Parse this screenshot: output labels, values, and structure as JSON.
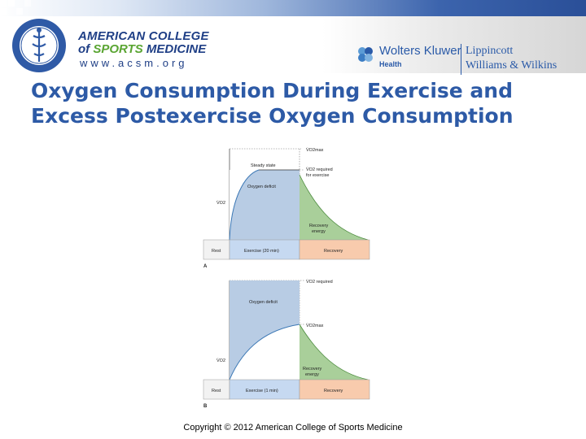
{
  "header": {
    "org_line1": "AMERICAN COLLEGE",
    "org_line2_prefix": "of ",
    "org_line2_highlight": "SPORTS",
    "org_line2_suffix": " MEDICINE",
    "org_url": "www.acsm.org",
    "publisher_name": "Wolters Kluwer",
    "publisher_division": "Health",
    "imprint_line1": "Lippincott",
    "imprint_line2": "Williams & Wilkins"
  },
  "slide": {
    "title": "Oxygen Consumption During Exercise and Excess Postexercise Oxygen Consumption",
    "copyright": "Copyright © 2012 American College of Sports Medicine"
  },
  "panel_a": {
    "letter": "A",
    "vo2max_label": "V̇O2max",
    "required_label": "V̇O2 required",
    "required_label2": "for exercise",
    "steady_state": "Steady state",
    "deficit": "Oxygen deficit",
    "y_label": "V̇O2",
    "recovery_energy1": "Recovery",
    "recovery_energy2": "energy",
    "phase_rest": "Rest",
    "phase_exercise": "Exercise (20 min)",
    "phase_recovery": "Recovery"
  },
  "panel_b": {
    "letter": "B",
    "required_label": "V̇O2 required",
    "deficit": "Oxygen deficit",
    "vo2max_label": "V̇O2max",
    "y_label": "V̇O2",
    "recovery_energy1": "Recovery",
    "recovery_energy2": "energy",
    "phase_rest": "Rest",
    "phase_exercise": "Exercise (1 min)",
    "phase_recovery": "Recovery"
  },
  "colors": {
    "title": "#2d5aa6",
    "deficit_fill": "#b8cce4",
    "recovery_fill": "#a9cf9a",
    "rest_fill": "#f2f2f2",
    "exercise_fill": "#c6d9f1",
    "recovery_phase_fill": "#f8cbad"
  }
}
